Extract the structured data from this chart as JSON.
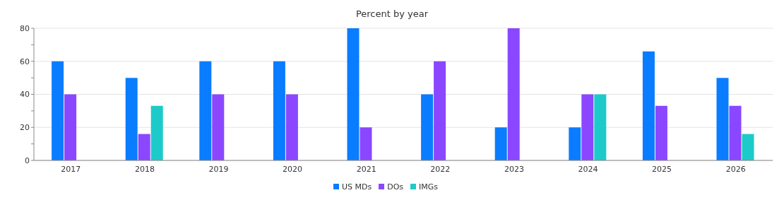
{
  "chart_data": {
    "type": "bar",
    "title": "Percent by year",
    "categories": [
      "2017",
      "2018",
      "2019",
      "2020",
      "2021",
      "2022",
      "2023",
      "2024",
      "2025",
      "2026"
    ],
    "series": [
      {
        "name": "US MDs",
        "color": "#0a7cff",
        "values": [
          60,
          50,
          60,
          60,
          80,
          40,
          20,
          20,
          66,
          50
        ]
      },
      {
        "name": "DOs",
        "color": "#8a47ff",
        "values": [
          40,
          16,
          40,
          40,
          20,
          60,
          80,
          40,
          33,
          33
        ]
      },
      {
        "name": "IMGs",
        "color": "#1ccbc9",
        "values": [
          0,
          33,
          0,
          0,
          0,
          0,
          0,
          40,
          0,
          16
        ]
      }
    ],
    "ylim": [
      0,
      80
    ],
    "yticks": [
      0,
      {
        "value": 10,
        "label": null
      },
      20,
      {
        "value": 30,
        "label": null
      },
      40,
      {
        "value": 50,
        "label": null
      },
      60,
      {
        "value": 70,
        "label": null
      },
      80
    ],
    "grid": "y",
    "legend": "bottom"
  }
}
